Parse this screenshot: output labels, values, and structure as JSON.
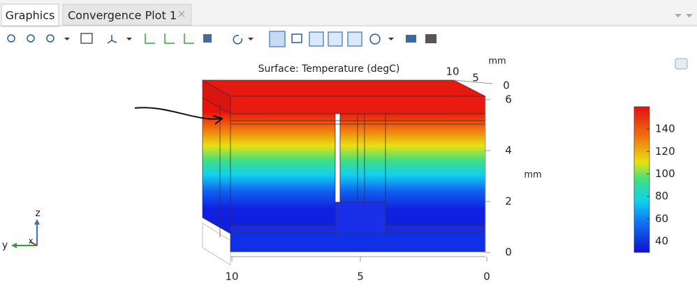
{
  "tabs": [
    {
      "label": "Graphics"
    },
    {
      "label": "Convergence Plot 1"
    }
  ],
  "plot": {
    "title": "Surface: Temperature (degC)",
    "top_axis": {
      "unit": "mm",
      "ticks": [
        10,
        5,
        0
      ]
    },
    "z_axis": {
      "unit": "mm",
      "ticks": [
        6,
        4,
        2,
        0
      ]
    },
    "bottom_axis": {
      "ticks": [
        10,
        5,
        0
      ]
    },
    "colorbar": {
      "lim": [
        30,
        160
      ],
      "ticks": [
        40,
        60,
        80,
        100,
        120,
        140
      ]
    },
    "triad": {
      "z": "z",
      "y": "y",
      "x": "x"
    }
  }
}
